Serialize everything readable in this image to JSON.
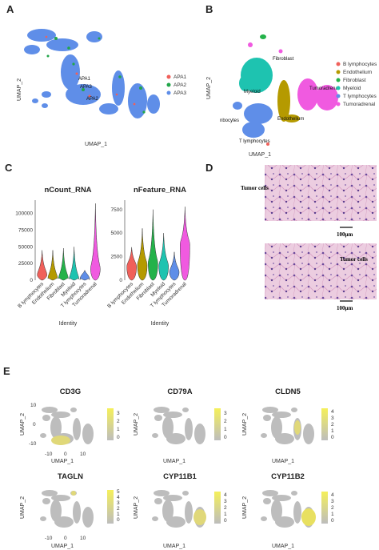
{
  "panels": {
    "a": "A",
    "b": "B",
    "c": "C",
    "d": "D",
    "e": "E"
  },
  "umap": {
    "x_label": "UMAP_1",
    "y_label": "UMAP_2"
  },
  "panel_a": {
    "legend": [
      {
        "label": "APA1",
        "color": "#f0605a"
      },
      {
        "label": "APA2",
        "color": "#22a64a"
      },
      {
        "label": "APA3",
        "color": "#5f8ee8"
      }
    ],
    "cluster_labels": [
      "APA1",
      "APA3",
      "APA2"
    ]
  },
  "panel_b": {
    "legend": [
      {
        "label": "B lymphocytes",
        "color": "#f0605a"
      },
      {
        "label": "Endothelium",
        "color": "#b59a00"
      },
      {
        "label": "Fibroblast",
        "color": "#24b24a"
      },
      {
        "label": "Myeloid",
        "color": "#1ec3b0"
      },
      {
        "label": "T lymphocytes",
        "color": "#5f8ee8"
      },
      {
        "label": "Tumoradrenal",
        "color": "#f05ae0"
      }
    ],
    "cluster_labels": [
      "Fibroblast",
      "Myeloid",
      "Tumoradrenal",
      "nbocytes",
      "Endothelium",
      "T lymphocytes"
    ]
  },
  "panel_c": {
    "x_label": "Identity",
    "categories": [
      "B lymphocytes",
      "Endothelium",
      "Fibroblast",
      "Myeloid",
      "T lymphocytes",
      "Tumoradrenal"
    ],
    "colors": [
      "#f0605a",
      "#b59a00",
      "#24b24a",
      "#1ec3b0",
      "#5f8ee8",
      "#f05ae0"
    ]
  },
  "chart_data": [
    {
      "type": "violin",
      "title": "nCount_RNA",
      "xlabel": "Identity",
      "categories": [
        "B lymphocytes",
        "Endothelium",
        "Fibroblast",
        "Myeloid",
        "T lymphocytes",
        "Tumoradrenal"
      ],
      "ylim": [
        0,
        120000
      ],
      "yticks": [
        "0",
        "25000",
        "50000",
        "75000",
        "100000"
      ],
      "median": [
        10000,
        5000,
        5000,
        4000,
        3000,
        20000
      ],
      "max": [
        45000,
        45000,
        48000,
        50000,
        15000,
        115000
      ]
    },
    {
      "type": "violin",
      "title": "nFeature_RNA",
      "xlabel": "Identity",
      "categories": [
        "B lymphocytes",
        "Endothelium",
        "Fibroblast",
        "Myeloid",
        "T lymphocytes",
        "Tumoradrenal"
      ],
      "ylim": [
        0,
        8500
      ],
      "yticks": [
        "0",
        "2500",
        "5000",
        "7500"
      ],
      "median": [
        1600,
        1800,
        2000,
        1700,
        1000,
        4000
      ],
      "max": [
        3500,
        5500,
        7500,
        5000,
        3000,
        7800
      ]
    }
  ],
  "panel_d": {
    "label_top": "Tumor cells",
    "label_bottom": "Tumor cells",
    "scale_top": "100μm",
    "scale_bottom": "100μm"
  },
  "panel_e": [
    {
      "gene": "CD3G",
      "scale": [
        "3",
        "2",
        "1",
        "0"
      ]
    },
    {
      "gene": "CD79A",
      "scale": [
        "3",
        "2",
        "1",
        "0"
      ]
    },
    {
      "gene": "CLDN5",
      "scale": [
        "4",
        "3",
        "2",
        "1",
        "0"
      ]
    },
    {
      "gene": "TAGLN",
      "scale": [
        "5",
        "4",
        "3",
        "2",
        "1",
        "0"
      ]
    },
    {
      "gene": "CYP11B1",
      "scale": [
        "4",
        "3",
        "2",
        "1",
        "0"
      ]
    },
    {
      "gene": "CYP11B2",
      "scale": [
        "4",
        "3",
        "2",
        "1",
        "0"
      ]
    }
  ],
  "panel_e_axis": {
    "x_ticks": [
      "-10",
      "0",
      "10"
    ],
    "y_ticks": [
      "10",
      "0",
      "-10"
    ]
  }
}
